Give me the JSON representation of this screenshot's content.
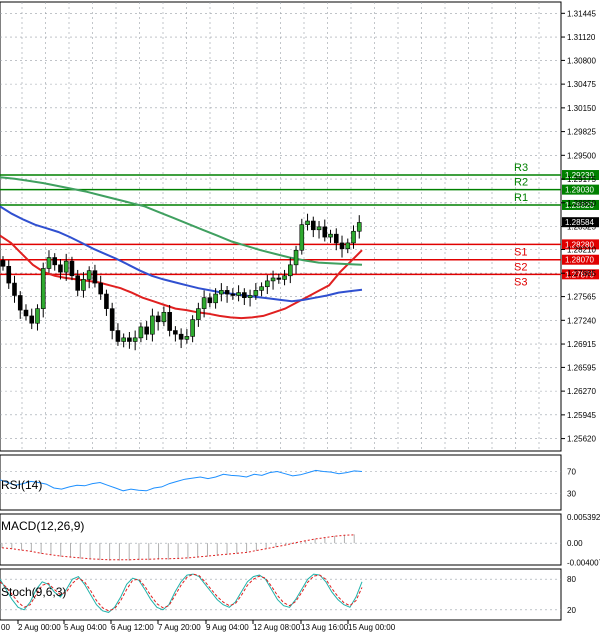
{
  "chart_data": {
    "type": "candlestick",
    "symbol_note": "Forex daily/4h candles",
    "price_axis": {
      "range": [
        1.2545,
        1.316
      ],
      "ticks": [
        "1.31445",
        "1.31120",
        "1.30800",
        "1.30475",
        "1.30150",
        "1.29825",
        "1.29500",
        "1.29175",
        "1.28850",
        "1.28525",
        "1.28210",
        "1.27885",
        "1.27565",
        "1.27240",
        "1.26915",
        "1.26595",
        "1.26270",
        "1.25945",
        "1.25620"
      ]
    },
    "current_price": "1.28584",
    "levels": [
      {
        "name": "R3",
        "value": 1.2923,
        "value_label": "1.29230",
        "kind": "resistance",
        "color": "#008000"
      },
      {
        "name": "R2",
        "value": 1.2903,
        "value_label": "1.29030",
        "kind": "resistance",
        "color": "#008000"
      },
      {
        "name": "R1",
        "value": 1.2882,
        "value_label": "1.28820",
        "kind": "resistance",
        "color": "#008000"
      },
      {
        "name": "S1",
        "value": 1.2828,
        "value_label": "1.28280",
        "kind": "support",
        "color": "#e00000"
      },
      {
        "name": "S2",
        "value": 1.2807,
        "value_label": "1.28070",
        "kind": "support",
        "color": "#e00000"
      },
      {
        "name": "S3",
        "value": 1.2787,
        "value_label": "1.27870",
        "kind": "support",
        "color": "#e00000"
      }
    ],
    "x_labels": [
      "2 Aug 00:00",
      "5 Aug 04:00",
      "6 Aug 12:00",
      "7 Aug 20:00",
      "9 Aug 04:00",
      "12 Aug 08:00",
      "13 Aug 16:00",
      "15 Aug 00:00"
    ],
    "x_label_prefix": "00",
    "candles_close": [
      1.2798,
      1.2775,
      1.2758,
      1.2738,
      1.273,
      1.272,
      1.274,
      1.2795,
      1.281,
      1.28,
      1.279,
      1.2805,
      1.2785,
      1.2765,
      1.278,
      1.2792,
      1.2775,
      1.276,
      1.274,
      1.271,
      1.2695,
      1.27,
      1.2695,
      1.27,
      1.2715,
      1.2705,
      1.273,
      1.2722,
      1.2735,
      1.271,
      1.2705,
      1.2698,
      1.2702,
      1.2725,
      1.274,
      1.2755,
      1.2748,
      1.276,
      1.2765,
      1.276,
      1.2758,
      1.2762,
      1.2755,
      1.2758,
      1.2765,
      1.277,
      1.2778,
      1.2782,
      1.278,
      1.2785,
      1.28,
      1.282,
      1.2855,
      1.286,
      1.2848,
      1.2852,
      1.2838,
      1.2842,
      1.283,
      1.2822,
      1.283,
      1.2846,
      1.2858
    ],
    "ma_series": [
      {
        "name": "MA fast (red)",
        "color": "#e02020",
        "values": [
          1.284,
          1.283,
          1.2815,
          1.28,
          1.279,
          1.2785,
          1.2782,
          1.278,
          1.2778,
          1.2776,
          1.2772,
          1.2768,
          1.2762,
          1.2755,
          1.275,
          1.2745,
          1.274,
          1.2738,
          1.2735,
          1.2733,
          1.273,
          1.2728,
          1.2727,
          1.2728,
          1.273,
          1.2735,
          1.274,
          1.2748,
          1.2756,
          1.2764,
          1.2772,
          1.279,
          1.2805,
          1.282
        ]
      },
      {
        "name": "MA mid (blue)",
        "color": "#3050d0",
        "values": [
          1.288,
          1.287,
          1.2862,
          1.2855,
          1.285,
          1.2845,
          1.2838,
          1.283,
          1.2822,
          1.2815,
          1.2808,
          1.28,
          1.2792,
          1.2785,
          1.278,
          1.2776,
          1.2772,
          1.2768,
          1.2765,
          1.2762,
          1.276,
          1.2758,
          1.2756,
          1.2754,
          1.2752,
          1.275,
          1.2752,
          1.2755,
          1.2758,
          1.2762,
          1.2764,
          1.2766
        ]
      },
      {
        "name": "MA slow (green)",
        "color": "#40a060",
        "values": [
          1.292,
          1.2918,
          1.2915,
          1.2912,
          1.2908,
          1.2904,
          1.29,
          1.2895,
          1.289,
          1.2885,
          1.288,
          1.2872,
          1.2864,
          1.2856,
          1.2848,
          1.284,
          1.2832,
          1.2826,
          1.282,
          1.2815,
          1.281,
          1.2806,
          1.2803,
          1.2802,
          1.2801,
          1.28
        ]
      }
    ],
    "rsi": {
      "label": "RSI(14)",
      "ticks": [
        "70",
        "30"
      ],
      "range": [
        0,
        100
      ],
      "values": [
        55,
        50,
        45,
        48,
        52,
        50,
        47,
        40,
        38,
        42,
        45,
        44,
        48,
        50,
        45,
        40,
        35,
        38,
        36,
        35,
        40,
        42,
        48,
        52,
        56,
        58,
        60,
        57,
        60,
        65,
        63,
        62,
        60,
        65,
        63,
        68,
        70,
        66,
        62,
        64,
        68,
        72,
        70,
        69,
        66,
        68,
        71,
        70
      ]
    },
    "macd": {
      "label": "MACD(12,26,9)",
      "ticks": [
        "0.005392",
        "0.00",
        "-0.004007"
      ],
      "range": [
        -0.0045,
        0.006
      ],
      "values": [
        -0.001,
        -0.0012,
        -0.0015,
        -0.0018,
        -0.0022,
        -0.0025,
        -0.0028,
        -0.003,
        -0.0032,
        -0.0034,
        -0.0035,
        -0.0036,
        -0.0036,
        -0.0036,
        -0.0035,
        -0.0035,
        -0.0034,
        -0.0034,
        -0.0033,
        -0.0032,
        -0.003,
        -0.0028,
        -0.0026,
        -0.0024,
        -0.0022,
        -0.002,
        -0.0016,
        -0.0012,
        -0.0008,
        -0.0004,
        0.0001,
        0.0005,
        0.0009,
        0.0012,
        0.0015,
        0.0017,
        0.0018
      ]
    },
    "stoch": {
      "label": "Stoch(9,6,3)",
      "ticks": [
        "80",
        "20"
      ],
      "range": [
        0,
        100
      ],
      "k": [
        80,
        60,
        40,
        25,
        20,
        35,
        60,
        75,
        70,
        55,
        45,
        60,
        80,
        85,
        70,
        50,
        30,
        18,
        15,
        25,
        45,
        70,
        82,
        78,
        60,
        40,
        25,
        20,
        30,
        55,
        75,
        88,
        90,
        85,
        70,
        55,
        40,
        30,
        25,
        35,
        55,
        75,
        85,
        88,
        80,
        60,
        40,
        28,
        25,
        40,
        60,
        80,
        90,
        88,
        75,
        55,
        40,
        30,
        25,
        45,
        75
      ],
      "d": [
        75,
        65,
        50,
        35,
        25,
        30,
        50,
        68,
        72,
        60,
        50,
        55,
        72,
        82,
        75,
        58,
        38,
        24,
        18,
        22,
        38,
        60,
        78,
        80,
        66,
        48,
        32,
        24,
        28,
        48,
        68,
        84,
        90,
        87,
        75,
        60,
        46,
        35,
        28,
        32,
        48,
        68,
        80,
        86,
        82,
        66,
        48,
        34,
        28,
        36,
        54,
        74,
        86,
        88,
        80,
        62,
        46,
        34,
        28,
        38,
        64
      ]
    }
  }
}
